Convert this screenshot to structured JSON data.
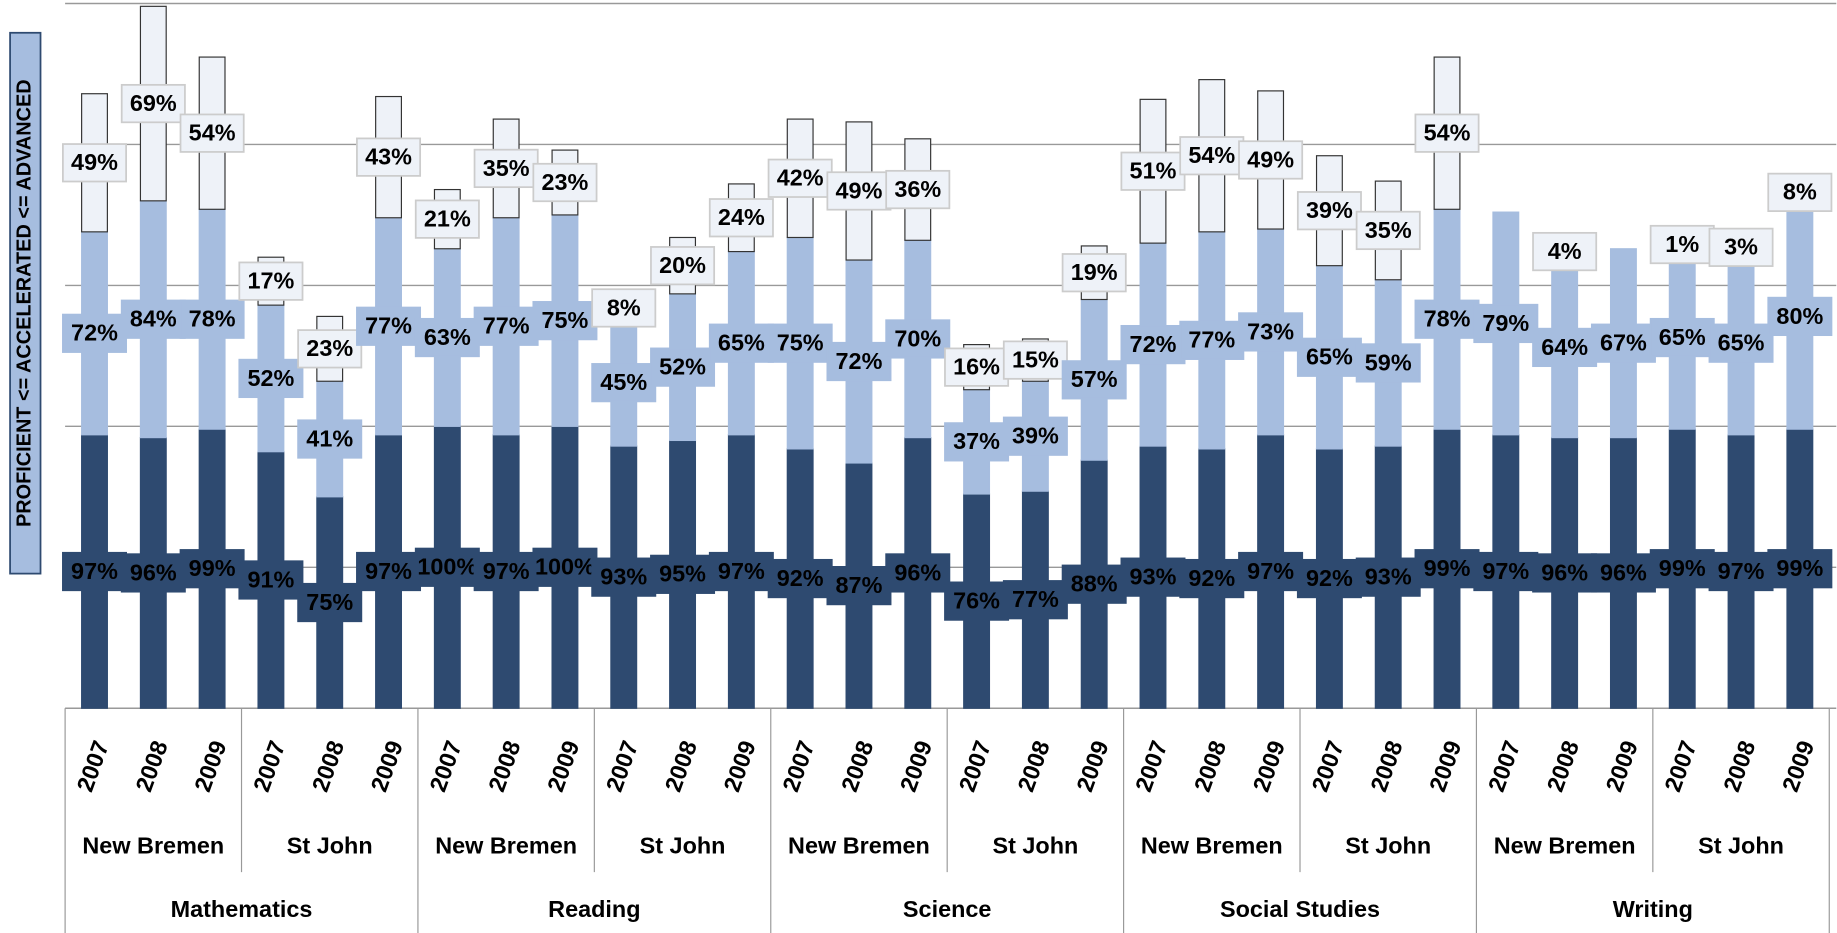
{
  "chart_data": {
    "type": "stacked_bar",
    "ylabel": "PROFICIENT <= ACCELERATED <= ADVANCED",
    "categories": [
      "2007",
      "2008",
      "2009",
      "2007",
      "2008",
      "2009",
      "2007",
      "2008",
      "2009",
      "2007",
      "2008",
      "2009",
      "2007",
      "2008",
      "2009",
      "2007",
      "2008",
      "2009",
      "2007",
      "2008",
      "2009",
      "2007",
      "2008",
      "2009",
      "2007",
      "2008",
      "2009",
      "2007",
      "2008",
      "2009"
    ],
    "schools": [
      "New Bremen",
      "St John",
      "New Bremen",
      "St John",
      "New Bremen",
      "St John",
      "New Bremen",
      "St John",
      "New Bremen",
      "St John"
    ],
    "subjects": [
      "Mathematics",
      "Reading",
      "Science",
      "Social Studies",
      "Writing"
    ],
    "series": [
      {
        "color": "#2e4a70",
        "text_color": "#ffffff",
        "values": [
          97,
          96,
          99,
          91,
          75,
          97,
          100,
          97,
          100,
          93,
          95,
          97,
          92,
          87,
          96,
          76,
          77,
          88,
          93,
          92,
          97,
          92,
          93,
          99,
          97,
          96,
          96,
          99,
          97,
          99
        ],
        "value_labels": [
          "97%",
          "96%",
          "99%",
          "91%",
          "75%",
          "97%",
          "100%",
          "97%",
          "100%",
          "93%",
          "95%",
          "97%",
          "92%",
          "87%",
          "96%",
          "76%",
          "77%",
          "88%",
          "93%",
          "92%",
          "97%",
          "92%",
          "93%",
          "99%",
          "97%",
          "96%",
          "96%",
          "99%",
          "97%",
          "99%"
        ]
      },
      {
        "color": "#a6bddf",
        "text_color": "#1a1a1a",
        "values": [
          72,
          84,
          78,
          52,
          41,
          77,
          63,
          77,
          75,
          45,
          52,
          65,
          75,
          72,
          70,
          37,
          39,
          57,
          72,
          77,
          73,
          65,
          59,
          78,
          79,
          64,
          67,
          65,
          65,
          80
        ],
        "value_labels": [
          "72%",
          "84%",
          "78%",
          "52%",
          "41%",
          "77%",
          "63%",
          "77%",
          "75%",
          "45%",
          "52%",
          "65%",
          "75%",
          "72%",
          "70%",
          "37%",
          "39%",
          "57%",
          "72%",
          "77%",
          "73%",
          "65%",
          "59%",
          "78%",
          "79%",
          "64%",
          "67%",
          "65%",
          "65%",
          "80%"
        ]
      },
      {
        "color": "#eef2f8",
        "text_color": "#1a1a1a",
        "values": [
          49,
          69,
          54,
          17,
          23,
          43,
          21,
          35,
          23,
          8,
          20,
          24,
          42,
          49,
          36,
          16,
          15,
          19,
          51,
          54,
          49,
          39,
          35,
          54,
          null,
          4,
          null,
          1,
          3,
          8
        ],
        "value_labels": [
          "49%",
          "69%",
          "54%",
          "17%",
          "23%",
          "43%",
          "21%",
          "35%",
          "23%",
          "8%",
          "20%",
          "24%",
          "42%",
          "49%",
          "36%",
          "16%",
          "15%",
          "19%",
          "51%",
          "54%",
          "49%",
          "39%",
          "35%",
          "54%",
          null,
          "4%",
          null,
          "1%",
          "3%",
          "8%"
        ]
      }
    ],
    "ylim": [
      0,
      250
    ],
    "yticks": [
      0,
      50,
      100,
      150,
      200,
      250
    ],
    "grid": true
  }
}
